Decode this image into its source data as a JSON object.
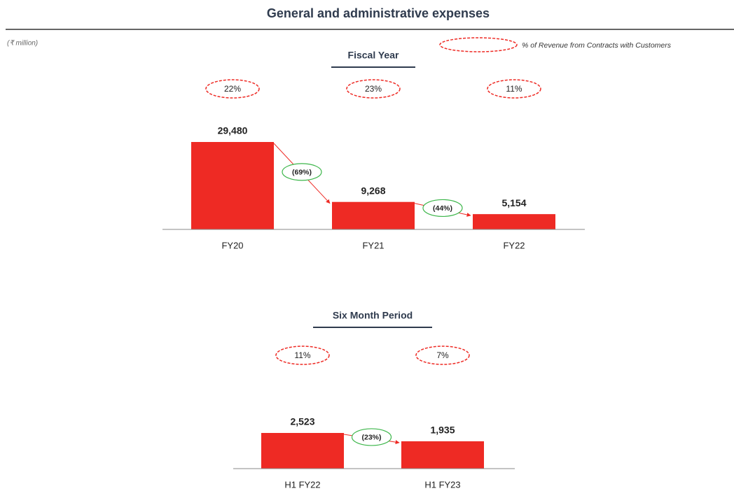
{
  "title": "General and administrative expenses",
  "unit_note": "(₹ million)",
  "legend": "% of Revenue from Contracts with Customers",
  "chart_data": [
    {
      "type": "bar",
      "title": "Fiscal Year",
      "categories": [
        "FY20",
        "FY21",
        "FY22"
      ],
      "values": [
        29480,
        9268,
        5154
      ],
      "value_labels": [
        "29,480",
        "9,268",
        "5,154"
      ],
      "percent_of_revenue": [
        22,
        23,
        11
      ],
      "percent_of_revenue_labels": [
        "22%",
        "23%",
        "11%"
      ],
      "changes": [
        -69,
        -44
      ],
      "change_labels": [
        "(69%)",
        "(44%)"
      ],
      "color": "#ee2a24"
    },
    {
      "type": "bar",
      "title": "Six Month Period",
      "categories": [
        "H1 FY22",
        "H1 FY23"
      ],
      "values": [
        2523,
        1935
      ],
      "value_labels": [
        "2,523",
        "1,935"
      ],
      "percent_of_revenue": [
        11,
        7
      ],
      "percent_of_revenue_labels": [
        "11%",
        "7%"
      ],
      "changes": [
        -23
      ],
      "change_labels": [
        "(23%)"
      ],
      "color": "#ee2a24"
    }
  ]
}
